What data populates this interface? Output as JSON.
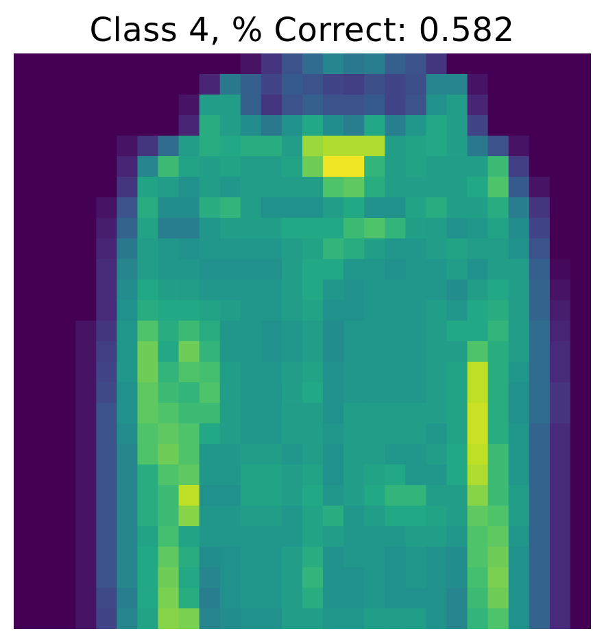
{
  "title": "Class 4, % Correct: 0.582",
  "chart_data": {
    "type": "heatmap",
    "title": "Class 4, % Correct: 0.582",
    "rows": 28,
    "cols": 28,
    "colormap": "viridis",
    "value_range": [
      0,
      1
    ],
    "axes_visible": false,
    "grid": false,
    "values": [
      [
        0,
        0,
        0,
        0,
        0,
        0,
        0,
        0,
        0,
        0,
        0,
        0.05,
        0.15,
        0.25,
        0.35,
        0.45,
        0.4,
        0.42,
        0.3,
        0.25,
        0.15,
        0,
        0,
        0,
        0,
        0,
        0,
        0
      ],
      [
        0,
        0,
        0,
        0,
        0,
        0,
        0,
        0,
        0,
        0.1,
        0.4,
        0.3,
        0.2,
        0.28,
        0.25,
        0.2,
        0.18,
        0.24,
        0.2,
        0.24,
        0.45,
        0.45,
        0.05,
        0,
        0,
        0,
        0,
        0
      ],
      [
        0,
        0,
        0,
        0,
        0,
        0,
        0,
        0,
        0.05,
        0.55,
        0.55,
        0.3,
        0.15,
        0.25,
        0.3,
        0.25,
        0.25,
        0.28,
        0.2,
        0.25,
        0.5,
        0.55,
        0.1,
        0,
        0,
        0,
        0,
        0
      ],
      [
        0,
        0,
        0,
        0,
        0,
        0,
        0,
        0,
        0.1,
        0.62,
        0.55,
        0.48,
        0.4,
        0.5,
        0.6,
        0.48,
        0.42,
        0.6,
        0.42,
        0.52,
        0.6,
        0.55,
        0.2,
        0,
        0,
        0,
        0,
        0
      ],
      [
        0,
        0,
        0,
        0,
        0,
        0.05,
        0.15,
        0.35,
        0.55,
        0.62,
        0.6,
        0.62,
        0.62,
        0.55,
        0.85,
        0.88,
        0.88,
        0.88,
        0.55,
        0.58,
        0.6,
        0.56,
        0.4,
        0.25,
        0.05,
        0,
        0,
        0
      ],
      [
        0,
        0,
        0,
        0,
        0,
        0.1,
        0.45,
        0.68,
        0.58,
        0.56,
        0.58,
        0.55,
        0.55,
        0.58,
        0.78,
        0.98,
        0.98,
        0.65,
        0.55,
        0.58,
        0.55,
        0.55,
        0.55,
        0.68,
        0.18,
        0,
        0,
        0
      ],
      [
        0,
        0,
        0,
        0,
        0,
        0.15,
        0.58,
        0.55,
        0.5,
        0.55,
        0.52,
        0.55,
        0.55,
        0.55,
        0.55,
        0.72,
        0.75,
        0.62,
        0.55,
        0.56,
        0.56,
        0.56,
        0.6,
        0.72,
        0.28,
        0.05,
        0,
        0
      ],
      [
        0,
        0,
        0,
        0,
        0.05,
        0.25,
        0.62,
        0.48,
        0.48,
        0.62,
        0.65,
        0.55,
        0.5,
        0.5,
        0.5,
        0.55,
        0.6,
        0.5,
        0.5,
        0.58,
        0.62,
        0.56,
        0.56,
        0.62,
        0.42,
        0.15,
        0,
        0
      ],
      [
        0,
        0,
        0,
        0,
        0.08,
        0.32,
        0.58,
        0.42,
        0.42,
        0.52,
        0.56,
        0.56,
        0.56,
        0.6,
        0.6,
        0.6,
        0.68,
        0.72,
        0.65,
        0.56,
        0.55,
        0.5,
        0.52,
        0.58,
        0.48,
        0.2,
        0,
        0
      ],
      [
        0,
        0,
        0,
        0,
        0.1,
        0.4,
        0.55,
        0.52,
        0.5,
        0.52,
        0.52,
        0.52,
        0.52,
        0.55,
        0.58,
        0.65,
        0.62,
        0.56,
        0.52,
        0.52,
        0.55,
        0.58,
        0.55,
        0.55,
        0.5,
        0.25,
        0,
        0
      ],
      [
        0,
        0,
        0,
        0,
        0.12,
        0.45,
        0.55,
        0.52,
        0.52,
        0.5,
        0.5,
        0.5,
        0.5,
        0.55,
        0.6,
        0.6,
        0.52,
        0.52,
        0.5,
        0.52,
        0.52,
        0.55,
        0.5,
        0.55,
        0.55,
        0.3,
        0.02,
        0
      ],
      [
        0,
        0,
        0,
        0,
        0.12,
        0.48,
        0.6,
        0.56,
        0.55,
        0.52,
        0.52,
        0.52,
        0.52,
        0.55,
        0.6,
        0.52,
        0.5,
        0.52,
        0.52,
        0.52,
        0.52,
        0.48,
        0.55,
        0.6,
        0.55,
        0.32,
        0.05,
        0
      ],
      [
        0,
        0,
        0,
        0,
        0.12,
        0.5,
        0.62,
        0.6,
        0.6,
        0.58,
        0.55,
        0.52,
        0.52,
        0.55,
        0.58,
        0.5,
        0.5,
        0.52,
        0.52,
        0.52,
        0.55,
        0.52,
        0.6,
        0.62,
        0.55,
        0.32,
        0.08,
        0
      ],
      [
        0,
        0,
        0,
        0.05,
        0.15,
        0.52,
        0.72,
        0.62,
        0.68,
        0.62,
        0.52,
        0.52,
        0.5,
        0.52,
        0.55,
        0.48,
        0.52,
        0.52,
        0.52,
        0.52,
        0.55,
        0.6,
        0.6,
        0.65,
        0.55,
        0.35,
        0.1,
        0
      ],
      [
        0,
        0,
        0,
        0.05,
        0.18,
        0.52,
        0.78,
        0.6,
        0.78,
        0.65,
        0.52,
        0.52,
        0.5,
        0.52,
        0.55,
        0.48,
        0.52,
        0.52,
        0.52,
        0.52,
        0.55,
        0.55,
        0.72,
        0.62,
        0.55,
        0.35,
        0.12,
        0
      ],
      [
        0,
        0,
        0,
        0.05,
        0.2,
        0.52,
        0.78,
        0.65,
        0.72,
        0.7,
        0.55,
        0.52,
        0.52,
        0.55,
        0.58,
        0.5,
        0.52,
        0.52,
        0.52,
        0.52,
        0.55,
        0.58,
        0.9,
        0.62,
        0.52,
        0.35,
        0.12,
        0
      ],
      [
        0,
        0,
        0,
        0.05,
        0.22,
        0.5,
        0.75,
        0.68,
        0.65,
        0.72,
        0.55,
        0.52,
        0.52,
        0.56,
        0.6,
        0.5,
        0.52,
        0.52,
        0.52,
        0.52,
        0.55,
        0.58,
        0.9,
        0.62,
        0.5,
        0.35,
        0.15,
        0
      ],
      [
        0,
        0,
        0,
        0.05,
        0.25,
        0.5,
        0.75,
        0.72,
        0.68,
        0.68,
        0.55,
        0.52,
        0.52,
        0.55,
        0.55,
        0.5,
        0.55,
        0.55,
        0.55,
        0.55,
        0.55,
        0.58,
        0.92,
        0.62,
        0.5,
        0.35,
        0.15,
        0
      ],
      [
        0,
        0,
        0,
        0.05,
        0.25,
        0.48,
        0.72,
        0.75,
        0.72,
        0.6,
        0.55,
        0.52,
        0.52,
        0.55,
        0.55,
        0.52,
        0.55,
        0.55,
        0.55,
        0.55,
        0.52,
        0.58,
        0.92,
        0.62,
        0.52,
        0.32,
        0.12,
        0
      ],
      [
        0,
        0,
        0,
        0.05,
        0.25,
        0.45,
        0.72,
        0.78,
        0.72,
        0.52,
        0.52,
        0.55,
        0.55,
        0.52,
        0.55,
        0.5,
        0.55,
        0.55,
        0.52,
        0.52,
        0.55,
        0.6,
        0.9,
        0.68,
        0.52,
        0.32,
        0.12,
        0
      ],
      [
        0,
        0,
        0,
        0.05,
        0.25,
        0.45,
        0.62,
        0.72,
        0.75,
        0.52,
        0.52,
        0.58,
        0.58,
        0.55,
        0.58,
        0.5,
        0.55,
        0.58,
        0.6,
        0.52,
        0.52,
        0.6,
        0.88,
        0.68,
        0.52,
        0.32,
        0.12,
        0
      ],
      [
        0,
        0,
        0,
        0.05,
        0.25,
        0.45,
        0.62,
        0.68,
        0.9,
        0.5,
        0.5,
        0.58,
        0.58,
        0.55,
        0.6,
        0.52,
        0.55,
        0.6,
        0.65,
        0.65,
        0.55,
        0.55,
        0.82,
        0.68,
        0.55,
        0.32,
        0.12,
        0
      ],
      [
        0,
        0,
        0,
        0.05,
        0.25,
        0.45,
        0.62,
        0.68,
        0.82,
        0.52,
        0.52,
        0.55,
        0.55,
        0.52,
        0.58,
        0.62,
        0.52,
        0.55,
        0.6,
        0.6,
        0.58,
        0.55,
        0.75,
        0.72,
        0.55,
        0.32,
        0.12,
        0
      ],
      [
        0,
        0,
        0,
        0.05,
        0.25,
        0.45,
        0.58,
        0.7,
        0.58,
        0.52,
        0.52,
        0.52,
        0.52,
        0.52,
        0.58,
        0.55,
        0.52,
        0.52,
        0.52,
        0.55,
        0.55,
        0.52,
        0.72,
        0.75,
        0.52,
        0.32,
        0.12,
        0
      ],
      [
        0,
        0,
        0,
        0.05,
        0.25,
        0.45,
        0.6,
        0.75,
        0.62,
        0.48,
        0.5,
        0.52,
        0.52,
        0.55,
        0.62,
        0.5,
        0.52,
        0.52,
        0.5,
        0.52,
        0.5,
        0.48,
        0.72,
        0.78,
        0.5,
        0.32,
        0.12,
        0
      ],
      [
        0,
        0,
        0,
        0.05,
        0.25,
        0.45,
        0.6,
        0.78,
        0.6,
        0.45,
        0.5,
        0.52,
        0.52,
        0.55,
        0.65,
        0.5,
        0.5,
        0.52,
        0.5,
        0.52,
        0.5,
        0.48,
        0.7,
        0.8,
        0.5,
        0.32,
        0.12,
        0
      ],
      [
        0,
        0,
        0,
        0.05,
        0.22,
        0.42,
        0.6,
        0.8,
        0.62,
        0.42,
        0.5,
        0.52,
        0.52,
        0.55,
        0.62,
        0.5,
        0.5,
        0.52,
        0.5,
        0.5,
        0.5,
        0.45,
        0.68,
        0.78,
        0.5,
        0.32,
        0.12,
        0
      ],
      [
        0,
        0,
        0,
        0.05,
        0.2,
        0.45,
        0.58,
        0.82,
        0.8,
        0.45,
        0.48,
        0.5,
        0.5,
        0.55,
        0.55,
        0.52,
        0.52,
        0.55,
        0.55,
        0.55,
        0.5,
        0.45,
        0.65,
        0.72,
        0.5,
        0.32,
        0.12,
        0
      ]
    ]
  }
}
